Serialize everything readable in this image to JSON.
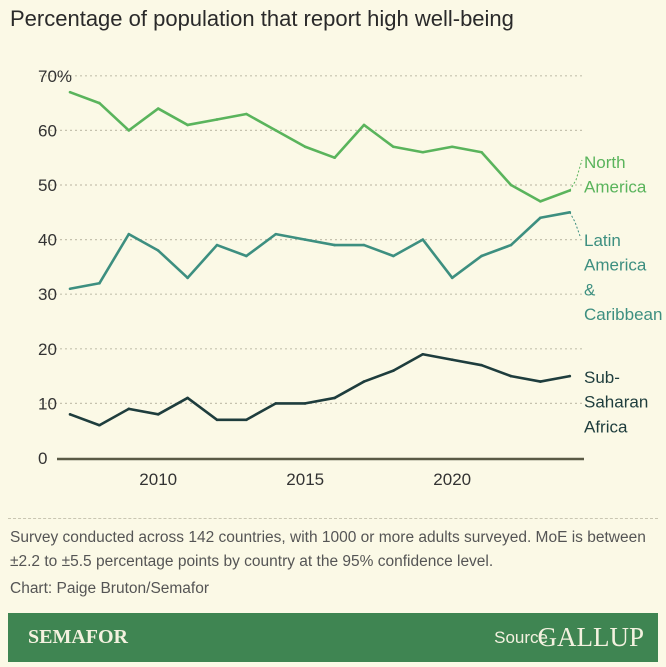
{
  "chart_data": {
    "type": "line",
    "title": "Percentage of population that report high well-being",
    "xlabel": "",
    "ylabel": "",
    "x": [
      2007,
      2008,
      2009,
      2010,
      2011,
      2012,
      2013,
      2014,
      2015,
      2016,
      2017,
      2018,
      2019,
      2020,
      2021,
      2022,
      2023,
      2024
    ],
    "xticks": [
      "2010",
      "2015",
      "2020"
    ],
    "yticks": [
      "0",
      "10",
      "20",
      "30",
      "40",
      "50",
      "60",
      "70%"
    ],
    "ylim": [
      0,
      70
    ],
    "grid": true,
    "series": [
      {
        "name": "North America",
        "labels": [
          "North",
          "America"
        ],
        "color": "#5ab45c",
        "values": [
          67,
          65,
          60,
          64,
          61,
          62,
          63,
          60,
          57,
          55,
          61,
          57,
          56,
          57,
          56,
          50,
          47,
          49
        ]
      },
      {
        "name": "Latin America & Caribbean",
        "labels": [
          "Latin",
          "America",
          "&",
          "Caribbean"
        ],
        "color": "#3d8f80",
        "values": [
          31,
          32,
          41,
          38,
          33,
          39,
          37,
          41,
          40,
          39,
          39,
          37,
          40,
          33,
          37,
          39,
          44,
          45
        ]
      },
      {
        "name": "Sub-Saharan Africa",
        "labels": [
          "Sub-",
          "Saharan",
          "Africa"
        ],
        "color": "#1e3d3d",
        "values": [
          8,
          6,
          9,
          8,
          11,
          7,
          7,
          10,
          10,
          11,
          14,
          16,
          19,
          18,
          17,
          15,
          14,
          15
        ]
      }
    ]
  },
  "note": "Survey conducted across 142 countries, with 1000 or more adults surveyed. MoE is between ±2.2 to ±5.5 percentage points by country at the 95% confidence level.",
  "credit": "Chart: Paige Bruton/Semafor",
  "footer": {
    "brand": "SEMAFOR",
    "source_label": "Source",
    "source_name": "GALLUP"
  }
}
